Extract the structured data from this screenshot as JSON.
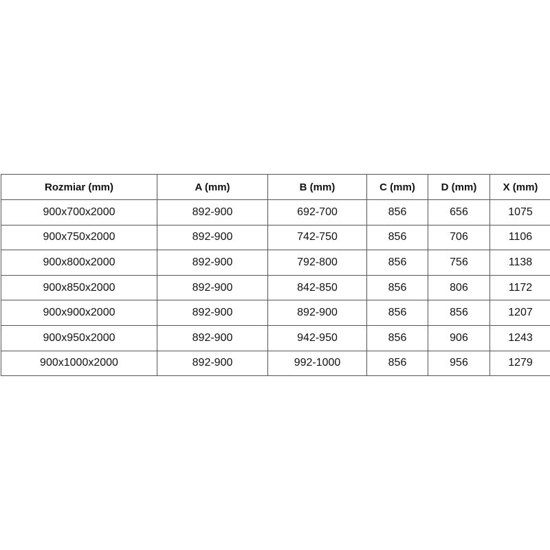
{
  "table": {
    "headers": [
      "Rozmiar (mm)",
      "A (mm)",
      "B (mm)",
      "C (mm)",
      "D (mm)",
      "X (mm)"
    ],
    "rows": [
      [
        "900x700x2000",
        "892-900",
        "692-700",
        "856",
        "656",
        "1075"
      ],
      [
        "900x750x2000",
        "892-900",
        "742-750",
        "856",
        "706",
        "1106"
      ],
      [
        "900x800x2000",
        "892-900",
        "792-800",
        "856",
        "756",
        "1138"
      ],
      [
        "900x850x2000",
        "892-900",
        "842-850",
        "856",
        "806",
        "1172"
      ],
      [
        "900x900x2000",
        "892-900",
        "892-900",
        "856",
        "856",
        "1207"
      ],
      [
        "900x950x2000",
        "892-900",
        "942-950",
        "856",
        "906",
        "1243"
      ],
      [
        "900x1000x2000",
        "892-900",
        "992-1000",
        "856",
        "956",
        "1279"
      ]
    ]
  }
}
